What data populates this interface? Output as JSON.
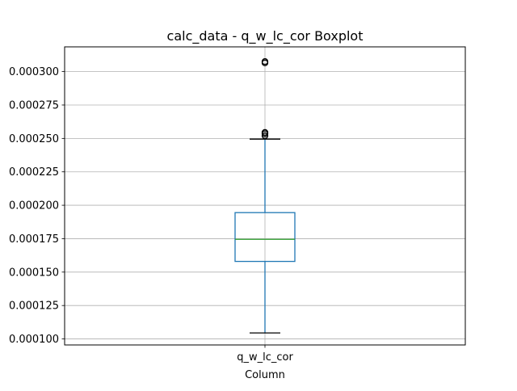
{
  "chart_data": {
    "type": "boxplot",
    "title": "calc_data - q_w_lc_cor Boxplot",
    "xlabel": "Column",
    "ylabel": "",
    "categories": [
      "q_w_lc_cor"
    ],
    "ylim": [
      9.55e-05,
      0.0003185
    ],
    "yticks": [
      0.0001,
      0.000125,
      0.00015,
      0.000175,
      0.0002,
      0.000225,
      0.00025,
      0.000275,
      0.0003
    ],
    "ytick_labels": [
      "0.000100",
      "0.000125",
      "0.000150",
      "0.000175",
      "0.000200",
      "0.000225",
      "0.000250",
      "0.000275",
      "0.000300"
    ],
    "grid": true,
    "boxes": [
      {
        "category": "q_w_lc_cor",
        "whisker_low": 0.0001045,
        "q1": 0.000158,
        "median": 0.0001745,
        "q3": 0.0001945,
        "whisker_high": 0.0002495,
        "outliers": [
          0.000252,
          0.0002535,
          0.0002545,
          0.0003065,
          0.0003075
        ]
      }
    ],
    "colors": {
      "box": "#1f77b4",
      "whisker": "#1f77b4",
      "cap": "#000000",
      "median": "#2ca02c",
      "flier": "#000000",
      "grid": "#b0b0b0"
    }
  }
}
